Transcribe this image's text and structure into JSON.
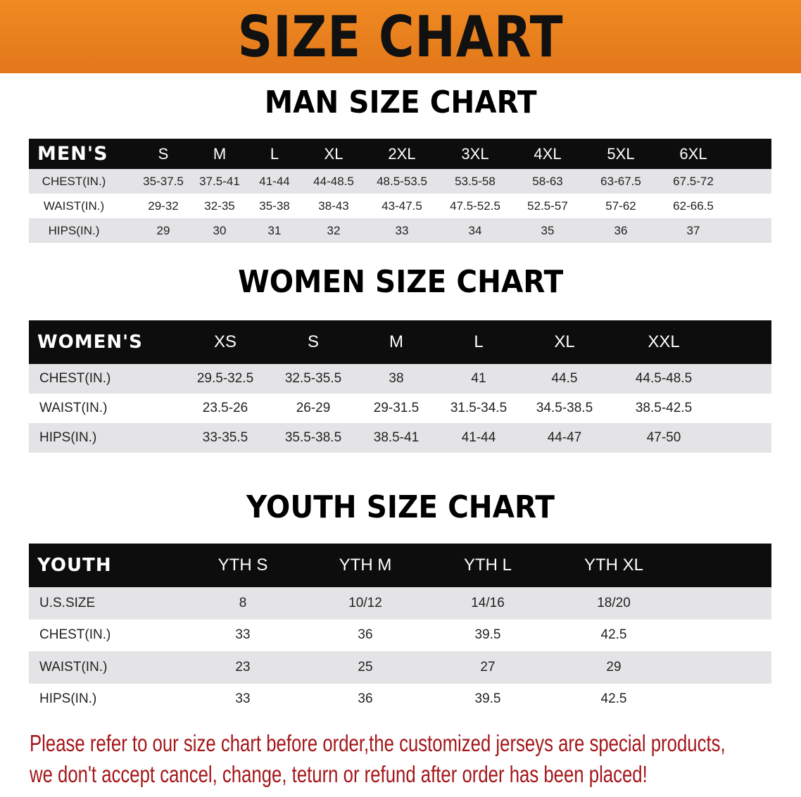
{
  "banner_title": "SIZE CHART",
  "colors": {
    "banner": "#e8801c",
    "header_row": "#0d0d0d",
    "stripe": "#e4e4e6",
    "note": "#a4161a"
  },
  "men": {
    "title": "MAN SIZE CHART",
    "headers": [
      "MEN'S",
      "S",
      "M",
      "L",
      "XL",
      "2XL",
      "3XL",
      "4XL",
      "5XL",
      "6XL"
    ],
    "rows": [
      [
        "CHEST(IN.)",
        "35-37.5",
        "37.5-41",
        "41-44",
        "44-48.5",
        "48.5-53.5",
        "53.5-58",
        "58-63",
        "63-67.5",
        "67.5-72"
      ],
      [
        "WAIST(IN.)",
        "29-32",
        "32-35",
        "35-38",
        "38-43",
        "43-47.5",
        "47.5-52.5",
        "52.5-57",
        "57-62",
        "62-66.5"
      ],
      [
        "HIPS(IN.)",
        "29",
        "30",
        "31",
        "32",
        "33",
        "34",
        "35",
        "36",
        "37"
      ]
    ]
  },
  "women": {
    "title": "WOMEN SIZE CHART",
    "headers": [
      "WOMEN'S",
      "XS",
      "S",
      "M",
      "L",
      "XL",
      "XXL"
    ],
    "rows": [
      [
        "CHEST(IN.)",
        "29.5-32.5",
        "32.5-35.5",
        "38",
        "41",
        "44.5",
        "44.5-48.5"
      ],
      [
        "WAIST(IN.)",
        "23.5-26",
        "26-29",
        "29-31.5",
        "31.5-34.5",
        "34.5-38.5",
        "38.5-42.5"
      ],
      [
        "HIPS(IN.)",
        "33-35.5",
        "35.5-38.5",
        "38.5-41",
        "41-44",
        "44-47",
        "47-50"
      ]
    ]
  },
  "youth": {
    "title": "YOUTH SIZE CHART",
    "headers": [
      "YOUTH",
      "YTH S",
      "YTH M",
      "YTH L",
      "YTH XL"
    ],
    "rows": [
      [
        "U.S.SIZE",
        "8",
        "10/12",
        "14/16",
        "18/20"
      ],
      [
        "CHEST(IN.)",
        "33",
        "36",
        "39.5",
        "42.5"
      ],
      [
        "WAIST(IN.)",
        "23",
        "25",
        "27",
        "29"
      ],
      [
        "HIPS(IN.)",
        "33",
        "36",
        "39.5",
        "42.5"
      ]
    ]
  },
  "note": {
    "line1": "Please refer to our size chart before order,the customized jerseys are special products,",
    "line2": "we don't accept cancel, change, teturn or refund after order has been placed!"
  }
}
